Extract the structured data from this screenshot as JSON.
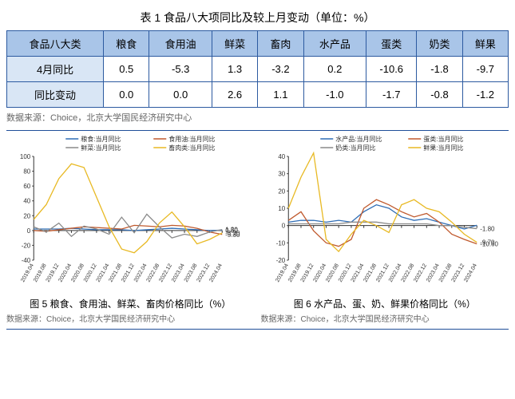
{
  "table": {
    "title": "表 1 食品八大项同比及较上月变动（单位：%）",
    "header_label": "食品八大类",
    "columns": [
      "粮食",
      "食用油",
      "鲜菜",
      "畜肉",
      "水产品",
      "蛋类",
      "奶类",
      "鲜果"
    ],
    "rows": [
      {
        "label": "4月同比",
        "values": [
          "0.5",
          "-5.3",
          "1.3",
          "-3.2",
          "0.2",
          "-10.6",
          "-1.8",
          "-9.7"
        ]
      },
      {
        "label": "同比变动",
        "values": [
          "0.0",
          "0.0",
          "2.6",
          "1.1",
          "-1.0",
          "-1.7",
          "-0.8",
          "-1.2"
        ]
      }
    ],
    "header_bg": "#a9c5e8",
    "rowlabel_bg": "#d9e6f5",
    "border_color": "#2c5aa0",
    "source": "数据来源：Choice，北京大学国民经济研究中心"
  },
  "charts": {
    "x_labels": [
      "2019.04",
      "2019.08",
      "2019.12",
      "2020.04",
      "2020.08",
      "2020.12",
      "2021.04",
      "2021.08",
      "2021.12",
      "2022.04",
      "2022.08",
      "2022.12",
      "2023.04",
      "2023.08",
      "2023.12",
      "2024.04"
    ],
    "left": {
      "caption": "图 5 粮食、食用油、鲜菜、畜肉价格同比（%）",
      "source": "数据来源：Choice，北京大学国民经济研究中心",
      "ylim": [
        -40,
        100
      ],
      "yticks": [
        -40,
        -20,
        0,
        20,
        40,
        60,
        80,
        100
      ],
      "legend": [
        {
          "label": "粮食:当月同比",
          "color": "#2f6db5"
        },
        {
          "label": "食用油:当月同比",
          "color": "#c05a2e"
        },
        {
          "label": "鲜菜:当月同比",
          "color": "#8a8a8a"
        },
        {
          "label": "畜肉类:当月同比",
          "color": "#e8b923"
        }
      ],
      "end_values": [
        "0.50",
        "1.30",
        "-3.20",
        "-5.30"
      ],
      "series": {
        "grain": [
          2,
          2,
          2,
          3,
          2,
          1,
          1,
          1,
          0,
          1,
          2,
          3,
          2,
          1,
          0,
          0.5
        ],
        "oil": [
          0,
          -1,
          1,
          3,
          5,
          4,
          3,
          2,
          7,
          6,
          5,
          7,
          6,
          3,
          -2,
          -5.3
        ],
        "veg": [
          5,
          -2,
          10,
          -8,
          6,
          2,
          -5,
          18,
          -3,
          22,
          5,
          -10,
          -5,
          -8,
          -2,
          1.3
        ],
        "meat": [
          15,
          35,
          70,
          90,
          85,
          45,
          5,
          -25,
          -30,
          -15,
          10,
          25,
          5,
          -18,
          -12,
          -3.2
        ]
      }
    },
    "right": {
      "caption": "图 6 水产品、蛋、奶、鲜果价格同比（%）",
      "source": "数据来源：Choice，北京大学国民经济研究中心",
      "ylim": [
        -20,
        40
      ],
      "yticks": [
        -20,
        -10,
        0,
        10,
        20,
        30,
        40
      ],
      "legend": [
        {
          "label": "水产品:当月同比",
          "color": "#2f6db5"
        },
        {
          "label": "蛋类:当月同比",
          "color": "#c05a2e"
        },
        {
          "label": "奶类:当月同比",
          "color": "#8a8a8a"
        },
        {
          "label": "鲜果:当月同比",
          "color": "#e8b923"
        }
      ],
      "end_values": [
        "-1.80",
        "-9.70",
        "-10.60"
      ],
      "series": {
        "aqua": [
          2,
          3,
          3,
          2,
          3,
          2,
          8,
          12,
          10,
          5,
          3,
          4,
          2,
          0,
          -2,
          0.2
        ],
        "egg": [
          3,
          8,
          -3,
          -10,
          -12,
          -8,
          10,
          15,
          12,
          8,
          5,
          7,
          2,
          -5,
          -8,
          -10.6
        ],
        "milk": [
          1,
          1,
          1,
          1,
          1,
          2,
          2,
          2,
          1,
          1,
          1,
          1,
          0,
          0,
          -1,
          -1.8
        ],
        "fruit": [
          10,
          28,
          42,
          -8,
          -15,
          -5,
          3,
          0,
          -4,
          12,
          15,
          10,
          8,
          2,
          -5,
          -9.7
        ]
      }
    },
    "axis_color": "#333333",
    "grid_color": "#cccccc",
    "line_width": 1.3,
    "font_size_axis": 8
  }
}
